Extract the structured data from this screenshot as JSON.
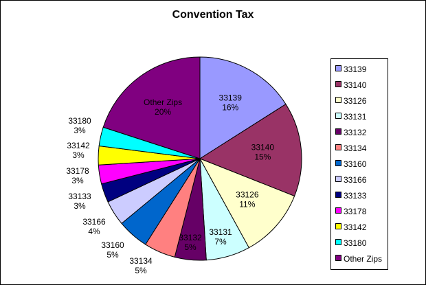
{
  "chart_data": {
    "type": "pie",
    "title": "Convention Tax",
    "slices": [
      {
        "label": "33139",
        "value": 16,
        "color": "#9999FF"
      },
      {
        "label": "33140",
        "value": 15,
        "color": "#993366"
      },
      {
        "label": "33126",
        "value": 11,
        "color": "#FFFFCC"
      },
      {
        "label": "33131",
        "value": 7,
        "color": "#CCFFFF"
      },
      {
        "label": "33132",
        "value": 5,
        "color": "#660066"
      },
      {
        "label": "33134",
        "value": 5,
        "color": "#FF8080"
      },
      {
        "label": "33160",
        "value": 5,
        "color": "#0066CC"
      },
      {
        "label": "33166",
        "value": 4,
        "color": "#CCCCFF"
      },
      {
        "label": "33133",
        "value": 3,
        "color": "#000080"
      },
      {
        "label": "33178",
        "value": 3,
        "color": "#FF00FF"
      },
      {
        "label": "33142",
        "value": 3,
        "color": "#FFFF00"
      },
      {
        "label": "33180",
        "value": 3,
        "color": "#00FFFF"
      },
      {
        "label": "Other Zips",
        "value": 20,
        "color": "#800080"
      }
    ],
    "value_suffix": "%",
    "legend_position": "right"
  }
}
